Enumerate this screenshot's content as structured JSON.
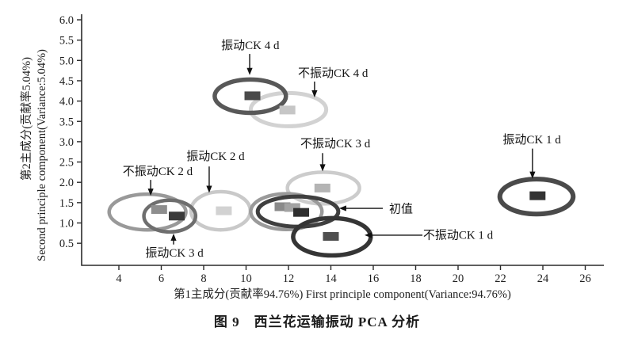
{
  "figure": {
    "caption": "图 9　西兰花运输振动 PCA 分析"
  },
  "chart_data": {
    "type": "scatter",
    "title": "",
    "xlabel": "第1主成分(贡献率94.76%) First principle component(Variance:94.76%)",
    "ylabel_cn": "第2主成分(贡献率5.04%)",
    "ylabel_en": "Second principle component(Variance:5.04%)",
    "xlim": [
      2.2,
      27.0
    ],
    "ylim": [
      0,
      6.15
    ],
    "x_ticks": [
      4,
      6,
      8,
      10,
      12,
      14,
      16,
      18,
      20,
      22,
      24,
      26
    ],
    "y_ticks": [
      0.5,
      1.0,
      1.5,
      2.0,
      2.5,
      3.0,
      3.5,
      4.0,
      4.5,
      5.0,
      5.5,
      6.0
    ],
    "grid": false,
    "legend": "none",
    "groups": [
      {
        "name": "no-vibration-ck-4d",
        "cx": 12.0,
        "cy": 3.79,
        "rx": 1.78,
        "ry": 0.41,
        "color": "#d2d2d2",
        "stroke_width": 5
      },
      {
        "name": "vibration-ck-2d",
        "cx": 8.8,
        "cy": 1.3,
        "rx": 1.4,
        "ry": 0.47,
        "color": "#c9c9c9",
        "stroke_width": 4.5
      },
      {
        "name": "no-vibration-ck-3d",
        "cx": 13.65,
        "cy": 1.86,
        "rx": 1.7,
        "ry": 0.39,
        "color": "#cccccc",
        "stroke_width": 4.5
      },
      {
        "name": "no-vibration-ck-2d",
        "cx": 5.35,
        "cy": 1.27,
        "rx": 1.81,
        "ry": 0.44,
        "color": "#999999",
        "stroke_width": 4.5
      },
      {
        "name": "vibration-ck-3d",
        "cx": 6.4,
        "cy": 1.17,
        "rx": 1.22,
        "ry": 0.39,
        "color": "#6e6e6e",
        "stroke_width": 4.5
      },
      {
        "name": "initial-value-outer",
        "cx": 11.9,
        "cy": 1.28,
        "rx": 1.68,
        "ry": 0.44,
        "color": "#9a9a9a",
        "stroke_width": 4.5
      },
      {
        "name": "initial-value",
        "cx": 12.45,
        "cy": 1.28,
        "rx": 1.9,
        "ry": 0.37,
        "color": "#3f3f3f",
        "stroke_width": 5
      },
      {
        "name": "no-vibration-ck-1d",
        "cx": 14.05,
        "cy": 0.66,
        "rx": 1.83,
        "ry": 0.46,
        "color": "#353535",
        "stroke_width": 5.5
      },
      {
        "name": "vibration-ck-4d",
        "cx": 10.2,
        "cy": 4.12,
        "rx": 1.68,
        "ry": 0.41,
        "color": "#585858",
        "stroke_width": 5.5
      },
      {
        "name": "vibration-ck-1d",
        "cx": 23.7,
        "cy": 1.65,
        "rx": 1.73,
        "ry": 0.43,
        "color": "#4a4a4a",
        "stroke_width": 6
      }
    ],
    "points": [
      {
        "group": "vibration-ck-4d",
        "x": 10.3,
        "y": 4.13,
        "color": "#4a4a4a"
      },
      {
        "group": "no-vibration-ck-4d",
        "x": 11.95,
        "y": 3.78,
        "color": "#c6c6c6"
      },
      {
        "group": "no-vibration-ck-2d",
        "x": 5.9,
        "y": 1.33,
        "color": "#8e8e8e"
      },
      {
        "group": "vibration-ck-3d",
        "x": 6.73,
        "y": 1.17,
        "color": "#3a3a3a"
      },
      {
        "group": "vibration-ck-2d",
        "x": 8.95,
        "y": 1.3,
        "color": "#d2d2d2"
      },
      {
        "group": "no-vibration-ck-3d",
        "x": 13.6,
        "y": 1.86,
        "color": "#b4b4b4"
      },
      {
        "group": "initial-value",
        "x": 11.72,
        "y": 1.4,
        "color": "#8a8a8a"
      },
      {
        "group": "initial-value",
        "x": 12.18,
        "y": 1.38,
        "color": "#a3a3a3"
      },
      {
        "group": "initial-value",
        "x": 12.6,
        "y": 1.26,
        "color": "#2e2e2e"
      },
      {
        "group": "no-vibration-ck-1d",
        "x": 14.0,
        "y": 0.67,
        "color": "#4f4f4f"
      },
      {
        "group": "vibration-ck-1d",
        "x": 23.75,
        "y": 1.67,
        "color": "#333333"
      }
    ],
    "annotations": [
      {
        "name": "vibration-ck-4d",
        "text": "振动CK 4 d",
        "label": [
          10.2,
          5.38
        ],
        "arrow_from": [
          10.17,
          5.16
        ],
        "arrow_to": [
          10.17,
          4.64
        ]
      },
      {
        "name": "no-vibration-ck-4d",
        "text": "不振动CK 4 d",
        "label": [
          14.1,
          4.69
        ],
        "arrow_from": [
          13.23,
          4.48
        ],
        "arrow_to": [
          13.23,
          4.09
        ]
      },
      {
        "name": "vibration-ck-2d",
        "text": "振动CK 2 d",
        "label": [
          8.56,
          2.65
        ],
        "arrow_from": [
          8.26,
          2.39
        ],
        "arrow_to": [
          8.26,
          1.74
        ]
      },
      {
        "name": "no-vibration-ck-2d",
        "text": "不振动CK 2 d",
        "label": [
          5.83,
          2.28
        ],
        "arrow_from": [
          5.5,
          2.06
        ],
        "arrow_to": [
          5.5,
          1.67
        ]
      },
      {
        "name": "vibration-ck-3d",
        "text": "振动CK 3 d",
        "label": [
          6.62,
          0.27
        ],
        "arrow_from": [
          6.58,
          0.47
        ],
        "arrow_to": [
          6.58,
          0.74
        ]
      },
      {
        "name": "no-vibration-ck-3d",
        "text": "不振动CK 3 d",
        "label": [
          14.21,
          2.96
        ],
        "arrow_from": [
          13.61,
          2.72
        ],
        "arrow_to": [
          13.61,
          2.27
        ]
      },
      {
        "name": "initial-value",
        "text": "初值",
        "label": [
          17.31,
          1.35
        ],
        "arrow_from": [
          16.45,
          1.36
        ],
        "arrow_to": [
          14.39,
          1.36
        ]
      },
      {
        "name": "no-vibration-ck-1d",
        "text": "不振动CK 1 d",
        "label": [
          20.0,
          0.71
        ],
        "arrow_from": [
          18.32,
          0.7
        ],
        "arrow_to": [
          15.59,
          0.7
        ]
      },
      {
        "name": "vibration-ck-1d",
        "text": "振动CK 1 d",
        "label": [
          23.48,
          3.06
        ],
        "arrow_from": [
          23.51,
          2.83
        ],
        "arrow_to": [
          23.51,
          2.09
        ]
      }
    ]
  }
}
